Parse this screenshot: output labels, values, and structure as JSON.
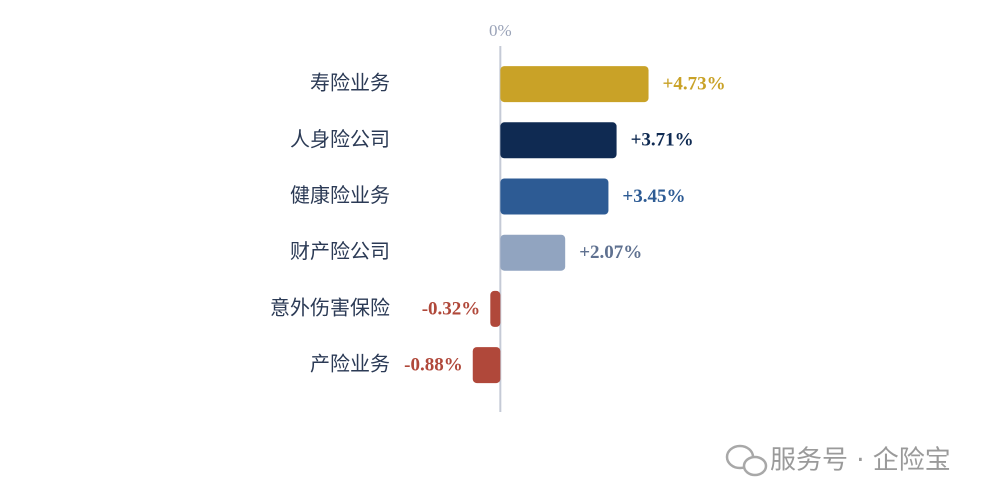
{
  "chart_data": {
    "type": "hbar",
    "categories": [
      "寿险业务",
      "人身险公司",
      "健康险业务",
      "财产险公司",
      "意外伤害保险",
      "产险业务"
    ],
    "values": [
      4.73,
      3.71,
      3.45,
      2.07,
      -0.32,
      -0.88
    ],
    "value_labels": [
      "+4.73%",
      "+3.71%",
      "+3.45%",
      "+2.07%",
      "-0.32%",
      "-0.88%"
    ],
    "colors": [
      "#c9a227",
      "#0f2a52",
      "#2d5b94",
      "#91a4c0",
      "#b0483a",
      "#b0483a"
    ],
    "value_label_colors": [
      "#c9a227",
      "#0f2a52",
      "#2d5b94",
      "#5f7190",
      "#b0483a",
      "#b0483a"
    ],
    "xlim": [
      -1,
      5
    ],
    "xticks": [
      {
        "value": 0,
        "label": "0%"
      }
    ],
    "watermark": "服务号 · 企险宝"
  }
}
